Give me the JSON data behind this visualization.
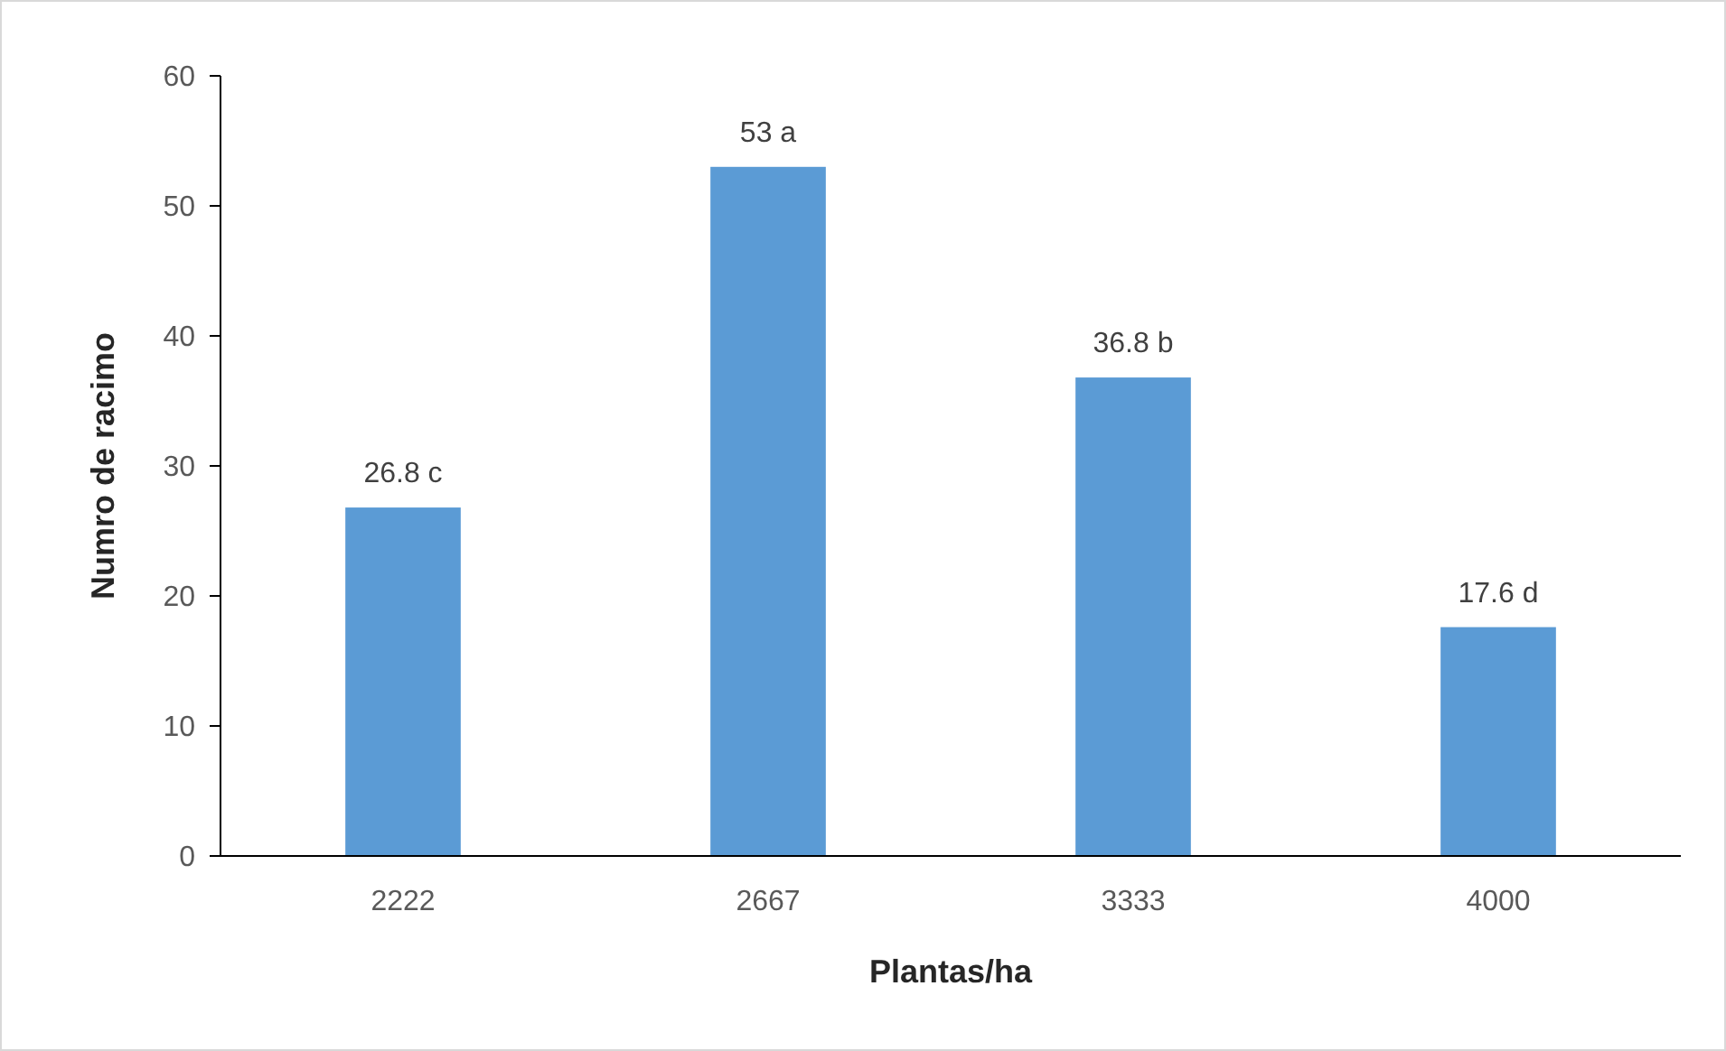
{
  "chart_data": {
    "type": "bar",
    "xlabel": "Plantas/ha",
    "ylabel": "Numro de racimo",
    "categories": [
      "2222",
      "2667",
      "3333",
      "4000"
    ],
    "values": [
      26.8,
      53,
      36.8,
      17.6
    ],
    "color": "#5b9bd5",
    "value_labels": [
      "26.8 c",
      "53 a",
      "36.8 b",
      "17.6 d"
    ],
    "ylim": [
      0,
      60
    ],
    "yticks": [
      0,
      10,
      20,
      30,
      40,
      50,
      60
    ],
    "grid": false
  }
}
